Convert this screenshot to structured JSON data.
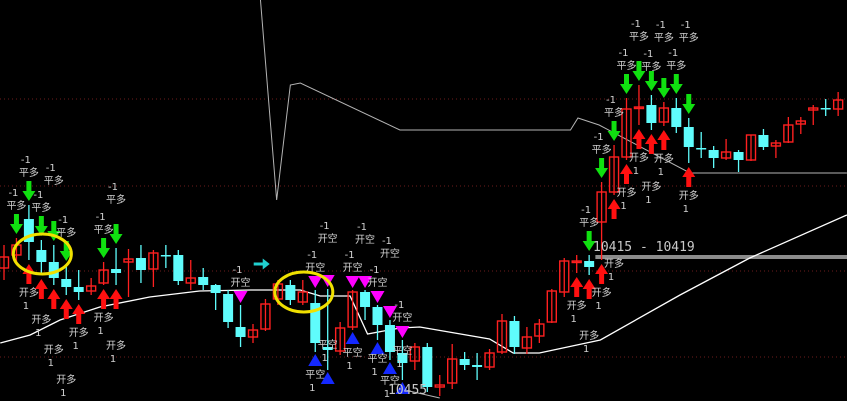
{
  "chart_data": {
    "type": "candlestick",
    "title": "",
    "xlabel": "",
    "ylabel": "",
    "grid": false,
    "colors": {
      "up": "#ff2020",
      "down": "#5ffcfc",
      "ma": "#ffffff",
      "line2": "#b4b4b4",
      "level": "#8c8c8c",
      "dotted": "#6e1c1c",
      "highlight": "#f0e000"
    },
    "candles": [
      [
        232,
        255,
        220,
        243
      ],
      [
        245,
        262,
        236,
        255
      ],
      [
        281,
        295,
        240,
        258
      ],
      [
        250,
        260,
        225,
        238
      ],
      [
        238,
        255,
        215,
        222
      ],
      [
        221,
        235,
        205,
        213
      ],
      [
        213,
        230,
        200,
        208
      ],
      [
        209,
        222,
        205,
        214
      ],
      [
        217,
        238,
        215,
        230
      ],
      [
        231,
        252,
        215,
        227
      ],
      [
        238,
        251,
        203,
        241
      ],
      [
        242,
        255,
        217,
        230
      ],
      [
        231,
        250,
        213,
        247
      ],
      [
        245,
        255,
        232,
        244
      ],
      [
        245,
        250,
        215,
        219
      ],
      [
        217,
        240,
        210,
        222
      ],
      [
        223,
        232,
        210,
        215
      ],
      [
        215,
        216,
        190,
        207
      ],
      [
        206,
        210,
        172,
        178
      ],
      [
        173,
        195,
        153,
        163
      ],
      [
        163,
        176,
        157,
        170
      ],
      [
        171,
        201,
        169,
        196
      ],
      [
        201,
        220,
        195,
        216
      ],
      [
        215,
        220,
        195,
        200
      ],
      [
        198,
        220,
        195,
        208
      ],
      [
        197,
        210,
        148,
        157
      ],
      [
        153,
        211,
        130,
        150
      ],
      [
        149,
        178,
        145,
        172
      ],
      [
        173,
        210,
        170,
        208
      ],
      [
        208,
        210,
        180,
        193
      ],
      [
        193,
        195,
        160,
        175
      ],
      [
        175,
        180,
        140,
        148
      ],
      [
        147,
        160,
        120,
        137
      ],
      [
        139,
        157,
        130,
        153
      ],
      [
        153,
        157,
        108,
        113
      ],
      [
        113,
        125,
        104,
        115
      ],
      [
        117,
        156,
        111,
        141
      ],
      [
        141,
        148,
        130,
        135
      ],
      [
        135,
        147,
        120,
        133
      ],
      [
        133,
        151,
        130,
        147
      ],
      [
        148,
        186,
        146,
        179
      ],
      [
        179,
        184,
        146,
        153
      ],
      [
        152,
        173,
        146,
        163
      ],
      [
        164,
        181,
        157,
        176
      ],
      [
        178,
        211,
        177,
        209
      ],
      [
        208,
        242,
        203,
        239
      ],
      [
        238,
        245,
        227,
        239
      ],
      [
        239,
        245,
        225,
        233
      ],
      [
        278,
        318,
        240,
        308
      ],
      [
        308,
        355,
        305,
        343
      ],
      [
        343,
        402,
        340,
        391
      ],
      [
        392,
        415,
        375,
        393
      ],
      [
        395,
        405,
        370,
        377
      ],
      [
        378,
        398,
        374,
        392
      ],
      [
        392,
        402,
        367,
        373
      ],
      [
        373,
        382,
        337,
        353
      ],
      [
        352,
        368,
        342,
        351
      ],
      [
        350,
        354,
        332,
        342
      ],
      [
        342,
        361,
        340,
        348
      ],
      [
        348,
        350,
        328,
        340
      ],
      [
        340,
        365,
        339,
        365
      ],
      [
        365,
        371,
        350,
        353
      ],
      [
        354,
        360,
        342,
        357
      ],
      [
        358,
        383,
        357,
        375
      ],
      [
        376,
        383,
        366,
        379
      ],
      [
        390,
        395,
        375,
        392
      ],
      [
        392,
        401,
        384,
        391
      ],
      [
        391,
        408,
        384,
        400
      ]
    ],
    "ma_line": [
      [
        -0.3,
        157
      ],
      [
        2.1,
        165
      ],
      [
        4.5,
        180
      ],
      [
        7.7,
        193
      ],
      [
        11.7,
        203
      ],
      [
        15.7,
        209
      ],
      [
        19.8,
        210
      ],
      [
        23.8,
        210
      ],
      [
        25.4,
        204
      ],
      [
        27.8,
        204
      ],
      [
        29.2,
        166
      ],
      [
        31.8,
        172
      ],
      [
        33.4,
        173
      ],
      [
        39,
        161
      ],
      [
        40.9,
        147
      ],
      [
        43,
        147
      ],
      [
        47.9,
        160
      ],
      [
        54.3,
        205
      ],
      [
        59.9,
        242
      ],
      [
        67.7,
        285
      ]
    ],
    "line2": [
      [
        20.6,
        500
      ],
      [
        21.9,
        300
      ],
      [
        23,
        415
      ],
      [
        23.8,
        417
      ],
      [
        31.8,
        370
      ],
      [
        45.5,
        370
      ],
      [
        46.1,
        382
      ],
      [
        47.8,
        375
      ],
      [
        55.1,
        327
      ],
      [
        67.7,
        327
      ]
    ],
    "line2_tail": [
      [
        32.2,
        110
      ],
      [
        35,
        102
      ]
    ],
    "dotted_levels": [
      401,
      314,
      229,
      143
    ],
    "level_line": {
      "value": 243,
      "from": 47.5,
      "label": "10415 - 10419"
    },
    "bottom_label": "10455",
    "signal_labels": {
      "close_long": "平多",
      "open_long": "开多",
      "open_short": "开空",
      "close_short": "平空"
    },
    "signal_qty": {
      "close_long": "-1",
      "open_long": "1",
      "open_short": "-1",
      "close_short": "1"
    },
    "signals": [
      {
        "i": 1,
        "t": "close_long"
      },
      {
        "i": 2,
        "t": "close_long"
      },
      {
        "i": 3,
        "t": "close_long"
      },
      {
        "i": 4,
        "t": "close_long"
      },
      {
        "i": 5,
        "t": "close_long"
      },
      {
        "i": 8,
        "t": "close_long"
      },
      {
        "i": 9,
        "t": "close_long"
      },
      {
        "i": 2,
        "t": "open_long"
      },
      {
        "i": 3,
        "t": "open_long"
      },
      {
        "i": 4,
        "t": "open_long"
      },
      {
        "i": 5,
        "t": "open_long"
      },
      {
        "i": 6,
        "t": "open_long"
      },
      {
        "i": 8,
        "t": "open_long"
      },
      {
        "i": 9,
        "t": "open_long"
      },
      {
        "i": 19,
        "t": "open_short"
      },
      {
        "i": 25,
        "t": "open_short"
      },
      {
        "i": 26,
        "t": "open_short"
      },
      {
        "i": 28,
        "t": "open_short"
      },
      {
        "i": 29,
        "t": "open_short"
      },
      {
        "i": 30,
        "t": "open_short"
      },
      {
        "i": 31,
        "t": "open_short"
      },
      {
        "i": 32,
        "t": "open_short"
      },
      {
        "i": 25,
        "t": "close_short"
      },
      {
        "i": 26,
        "t": "close_short"
      },
      {
        "i": 28,
        "t": "close_short"
      },
      {
        "i": 30,
        "t": "close_short"
      },
      {
        "i": 31,
        "t": "close_short"
      },
      {
        "i": 32,
        "t": "close_short"
      },
      {
        "i": 47,
        "t": "close_long"
      },
      {
        "i": 48,
        "t": "close_long"
      },
      {
        "i": 49,
        "t": "close_long"
      },
      {
        "i": 50,
        "t": "close_long"
      },
      {
        "i": 51,
        "t": "close_long"
      },
      {
        "i": 52,
        "t": "close_long"
      },
      {
        "i": 53,
        "t": "close_long"
      },
      {
        "i": 54,
        "t": "close_long"
      },
      {
        "i": 55,
        "t": "close_long"
      },
      {
        "i": 46,
        "t": "open_long"
      },
      {
        "i": 47,
        "t": "open_long"
      },
      {
        "i": 48,
        "t": "open_long"
      },
      {
        "i": 49,
        "t": "open_long"
      },
      {
        "i": 50,
        "t": "open_long"
      },
      {
        "i": 51,
        "t": "open_long"
      },
      {
        "i": 52,
        "t": "open_long"
      },
      {
        "i": 53,
        "t": "open_long"
      },
      {
        "i": 55,
        "t": "open_long"
      }
    ],
    "highlights": [
      {
        "i": 3,
        "value": 246
      },
      {
        "i": 24,
        "value": 208
      }
    ],
    "marker_arrow": {
      "i": 20.7,
      "value": 236
    }
  }
}
